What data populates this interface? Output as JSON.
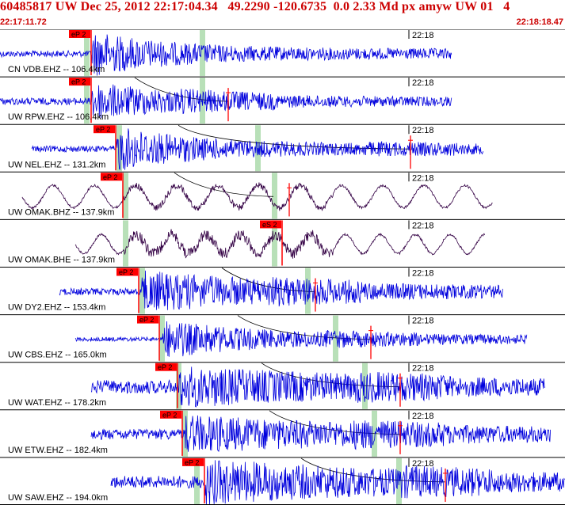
{
  "header": {
    "title": "60485817 UW Dec 25, 2012 22:17:04.34   49.2290 -120.6735  0.0 2.33 Md px amyw UW 01   4",
    "start_time": "22:17:11.72",
    "end_time": "22:18:18.47"
  },
  "colors": {
    "header_text": "#cc0000",
    "trace_blue": "#0000dd",
    "trace_purple": "#330044",
    "pick_red": "#ff0000",
    "window_green": "#b8e0b8",
    "moveout_curve": "#000000"
  },
  "minute_label": "22:18",
  "traces": [
    {
      "label": "CN VDB.EHZ -- 106.4km",
      "pick": "eP 2",
      "color": "blue",
      "pick_x": 114,
      "green_x": [
        106,
        252
      ],
      "start": 0,
      "end": 570,
      "onset": 116,
      "amp": 26,
      "noise": 0.15,
      "decay": 0.006,
      "style": "burst",
      "extra": []
    },
    {
      "label": "UW RPW.EHZ -- 106.4km",
      "pick": "eP 2",
      "color": "blue",
      "pick_x": 114,
      "green_x": [
        106,
        252
      ],
      "start": 0,
      "end": 570,
      "onset": 116,
      "amp": 22,
      "noise": 0.2,
      "decay": 0.005,
      "style": "burst",
      "extra": [
        288
      ],
      "curve": [
        170,
        288
      ]
    },
    {
      "label": "UW NEL.EHZ -- 131.2km",
      "pick": "eP 2",
      "color": "blue",
      "pick_x": 145,
      "green_x": [
        147,
        322
      ],
      "start": 40,
      "end": 610,
      "onset": 147,
      "amp": 26,
      "noise": 0.15,
      "decay": 0.006,
      "style": "burst",
      "extra": [
        518
      ],
      "curve": [
        225,
        518
      ]
    },
    {
      "label": "UW OMAK.BHZ -- 137.9km",
      "pick": "eP 2",
      "color": "purple",
      "pick_x": 154,
      "green_x": [
        155,
        343
      ],
      "start": 28,
      "end": 622,
      "onset": 156,
      "amp": 6,
      "noise": 0.3,
      "decay": 0.004,
      "style": "wave",
      "extra": [
        365
      ],
      "curve": [
        220,
        345
      ]
    },
    {
      "label": "UW OMAK.BHE -- 137.9km",
      "pick": "eS 2",
      "color": "purple",
      "pick_x": 355,
      "green_x": [
        155,
        343
      ],
      "start": 95,
      "end": 612,
      "onset": 156,
      "amp": 6,
      "noise": 0.3,
      "decay": 0.004,
      "style": "wave2",
      "extra": [],
      "curve": []
    },
    {
      "label": "UW DY2.EHZ -- 153.4km",
      "pick": "eP 2",
      "color": "blue",
      "pick_x": 174,
      "green_x": [
        176,
        385
      ],
      "start": 75,
      "end": 635,
      "onset": 178,
      "amp": 24,
      "noise": 0.18,
      "decay": 0.003,
      "style": "burst",
      "extra": [
        398
      ],
      "curve": [
        280,
        398
      ]
    },
    {
      "label": "UW CBS.EHZ -- 165.0km",
      "pick": "eP 2",
      "color": "blue",
      "pick_x": 200,
      "green_x": [
        201,
        420
      ],
      "start": 95,
      "end": 665,
      "onset": 205,
      "amp": 22,
      "noise": 0.12,
      "decay": 0.005,
      "style": "burst",
      "extra": [
        468
      ],
      "curve": [
        300,
        468
      ]
    },
    {
      "label": "UW WAT.EHZ -- 178.2km",
      "pick": "eP 2",
      "color": "blue",
      "pick_x": 223,
      "green_x": [
        222,
        457
      ],
      "start": 115,
      "end": 688,
      "onset": 226,
      "amp": 24,
      "noise": 0.35,
      "decay": 0.002,
      "style": "burst",
      "extra": [
        505
      ],
      "curve": [
        330,
        505
      ]
    },
    {
      "label": "UW ETW.EHZ -- 182.4km",
      "pick": "eP 2",
      "color": "blue",
      "pick_x": 229,
      "green_x": [
        230,
        469
      ],
      "start": 115,
      "end": 695,
      "onset": 232,
      "amp": 22,
      "noise": 0.3,
      "decay": 0.002,
      "style": "burst",
      "extra": [
        505
      ],
      "curve": [
        340,
        505
      ]
    },
    {
      "label": "UW SAW.EHZ -- 194.0km",
      "pick": "eP 2",
      "color": "blue",
      "pick_x": 257,
      "green_x": [
        245,
        500
      ],
      "start": 140,
      "end": 713,
      "onset": 258,
      "amp": 26,
      "noise": 0.3,
      "decay": 0.002,
      "style": "burst",
      "extra": [
        562
      ],
      "curve": [
        380,
        562
      ]
    }
  ]
}
